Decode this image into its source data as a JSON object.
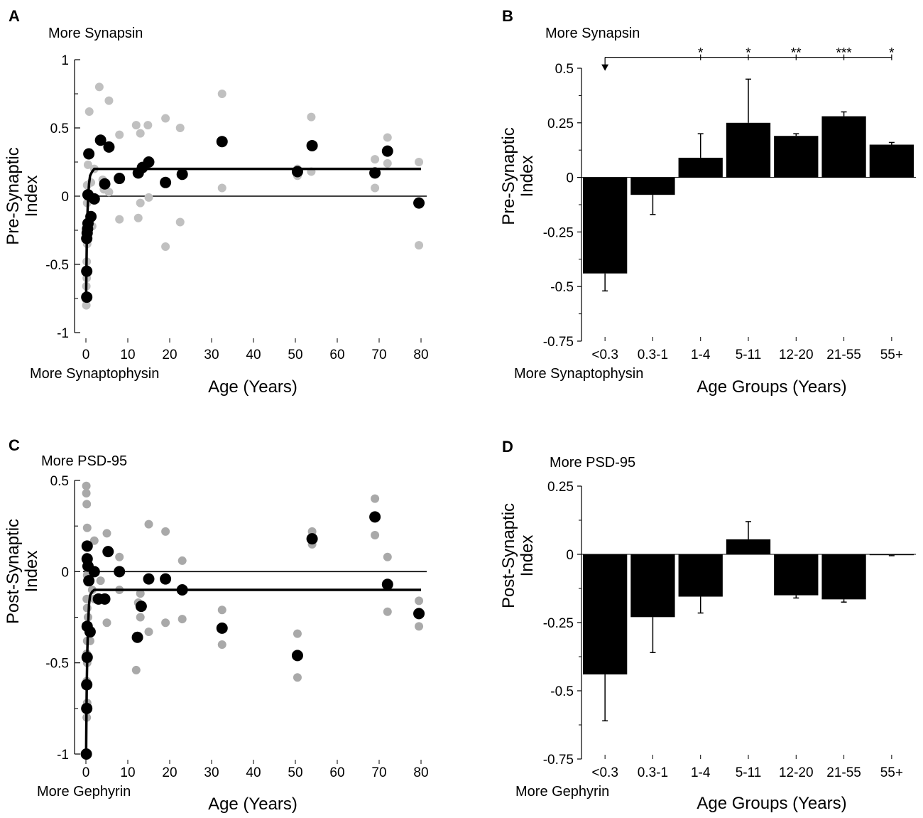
{
  "figure": {
    "panels": [
      {
        "letter": "A"
      },
      {
        "letter": "B"
      },
      {
        "letter": "C"
      },
      {
        "letter": "D"
      }
    ]
  },
  "chart_data": [
    {
      "type": "scatter",
      "panel": "A",
      "top_annotation": "More Synapsin",
      "bottom_annotation": "More Synaptophysin",
      "xlabel": "Age (Years)",
      "ylabel_line1": "Pre-Synaptic",
      "ylabel_line2": "Index",
      "xlim": [
        -2,
        80
      ],
      "ylim": [
        -1,
        1
      ],
      "xticks": [
        0,
        10,
        20,
        30,
        40,
        50,
        60,
        70,
        80
      ],
      "yticks": [
        {
          "v": -1,
          "label": "-1"
        },
        {
          "v": -0.5,
          "label": "-0.5"
        },
        {
          "v": 0,
          "label": "0"
        },
        {
          "v": 0.5,
          "label": "0.5"
        },
        {
          "v": 1,
          "label": "1"
        }
      ],
      "zero_line": 0,
      "fit_plateau": 0.2,
      "fit_curve": [
        [
          0.05,
          -0.74
        ],
        [
          0.1,
          -0.6
        ],
        [
          0.2,
          -0.35
        ],
        [
          0.35,
          -0.15
        ],
        [
          0.5,
          -0.02
        ],
        [
          0.75,
          0.09
        ],
        [
          1,
          0.15
        ],
        [
          1.5,
          0.18
        ],
        [
          2,
          0.2
        ]
      ],
      "series": [
        {
          "name": "individual",
          "color": "#c0c0c0",
          "points": [
            [
              0.1,
              -0.8
            ],
            [
              0.1,
              -0.76
            ],
            [
              0.1,
              -0.66
            ],
            [
              0.2,
              -0.6
            ],
            [
              0.2,
              -0.48
            ],
            [
              0.3,
              -0.35
            ],
            [
              0.2,
              -0.2
            ],
            [
              0.3,
              -0.05
            ],
            [
              0.3,
              0.08
            ],
            [
              0.5,
              0.23
            ],
            [
              0.8,
              0.62
            ],
            [
              1.2,
              0.1
            ],
            [
              1.5,
              -0.22
            ],
            [
              2,
              0.2
            ],
            [
              3.2,
              0.8
            ],
            [
              4,
              0.12
            ],
            [
              4.3,
              0.05
            ],
            [
              5.5,
              0.7
            ],
            [
              5.5,
              0.03
            ],
            [
              8,
              0.45
            ],
            [
              8,
              -0.17
            ],
            [
              12,
              0.52
            ],
            [
              12.5,
              -0.16
            ],
            [
              13,
              0.46
            ],
            [
              13,
              -0.05
            ],
            [
              14.8,
              0.52
            ],
            [
              15,
              -0.01
            ],
            [
              19,
              0.57
            ],
            [
              19,
              -0.37
            ],
            [
              22.5,
              0.5
            ],
            [
              22.5,
              -0.19
            ],
            [
              32.5,
              0.75
            ],
            [
              32.5,
              0.06
            ],
            [
              50.5,
              0.2
            ],
            [
              50.5,
              0.15
            ],
            [
              53.8,
              0.58
            ],
            [
              53.8,
              0.18
            ],
            [
              69,
              0.27
            ],
            [
              69,
              0.06
            ],
            [
              72,
              0.43
            ],
            [
              72,
              0.24
            ],
            [
              79.5,
              0.25
            ],
            [
              79.5,
              -0.36
            ]
          ]
        },
        {
          "name": "mean",
          "color": "#000000",
          "points": [
            [
              0.2,
              -0.74
            ],
            [
              0.2,
              -0.55
            ],
            [
              0.2,
              -0.31
            ],
            [
              0.3,
              -0.27
            ],
            [
              0.4,
              -0.24
            ],
            [
              0.5,
              -0.2
            ],
            [
              0.5,
              0.01
            ],
            [
              0.7,
              0.31
            ],
            [
              1.2,
              -0.15
            ],
            [
              2,
              -0.02
            ],
            [
              3.5,
              0.41
            ],
            [
              4.5,
              0.09
            ],
            [
              5.5,
              0.36
            ],
            [
              8,
              0.13
            ],
            [
              12.5,
              0.17
            ],
            [
              13.5,
              0.21
            ],
            [
              15,
              0.25
            ],
            [
              19,
              0.1
            ],
            [
              23,
              0.16
            ],
            [
              32.5,
              0.4
            ],
            [
              50.5,
              0.18
            ],
            [
              54,
              0.37
            ],
            [
              69,
              0.17
            ],
            [
              72,
              0.33
            ],
            [
              79.5,
              -0.05
            ]
          ]
        }
      ]
    },
    {
      "type": "bar",
      "panel": "B",
      "top_annotation": "More Synapsin",
      "bottom_annotation": "More Synaptophysin",
      "xlabel": "Age Groups (Years)",
      "ylabel_line1": "Pre-Synaptic",
      "ylabel_line2": "Index",
      "ylim": [
        -0.75,
        0.5
      ],
      "yticks": [
        {
          "v": -0.75,
          "label": "-0.75"
        },
        {
          "v": -0.5,
          "label": "-0.5"
        },
        {
          "v": -0.25,
          "label": "-0.25"
        },
        {
          "v": 0,
          "label": "0"
        },
        {
          "v": 0.25,
          "label": "0.25"
        },
        {
          "v": 0.5,
          "label": "0.5"
        }
      ],
      "categories": [
        "<0.3",
        "0.3-1",
        "1-4",
        "5-11",
        "12-20",
        "21-55",
        "55+"
      ],
      "values": [
        -0.44,
        -0.08,
        0.09,
        0.25,
        0.19,
        0.28,
        0.15
      ],
      "errors": [
        0.08,
        0.09,
        0.11,
        0.2,
        0.01,
        0.02,
        0.01
      ],
      "significance": [
        "",
        "",
        "*",
        "*",
        "**",
        "***",
        "*"
      ],
      "bracket_y": 0.55
    },
    {
      "type": "scatter",
      "panel": "C",
      "top_annotation": "More PSD-95",
      "bottom_annotation": "More Gephyrin",
      "xlabel": "Age (Years)",
      "ylabel_line1": "Post-Synaptic",
      "ylabel_line2": "Index",
      "xlim": [
        -2,
        80
      ],
      "ylim": [
        -1,
        0.5
      ],
      "xticks": [
        0,
        10,
        20,
        30,
        40,
        50,
        60,
        70,
        80
      ],
      "yticks": [
        {
          "v": -1,
          "label": "-1"
        },
        {
          "v": -0.5,
          "label": "-0.5"
        },
        {
          "v": 0,
          "label": "0"
        },
        {
          "v": 0.5,
          "label": "0.5"
        }
      ],
      "zero_line": 0,
      "fit_plateau": -0.1,
      "fit_curve": [
        [
          0.05,
          -1.0
        ],
        [
          0.1,
          -0.85
        ],
        [
          0.2,
          -0.62
        ],
        [
          0.35,
          -0.42
        ],
        [
          0.5,
          -0.3
        ],
        [
          0.75,
          -0.18
        ],
        [
          1,
          -0.13
        ],
        [
          1.5,
          -0.11
        ],
        [
          2,
          -0.1
        ]
      ],
      "series": [
        {
          "name": "individual",
          "color": "#a9a9a9",
          "points": [
            [
              0.1,
              0.47
            ],
            [
              0.1,
              0.43
            ],
            [
              0.2,
              0.37
            ],
            [
              0.3,
              0.24
            ],
            [
              0.2,
              0.08
            ],
            [
              0.3,
              -0.02
            ],
            [
              0.2,
              -0.15
            ],
            [
              0.3,
              -0.2
            ],
            [
              0.2,
              -0.3
            ],
            [
              0.3,
              -0.38
            ],
            [
              0.2,
              -0.45
            ],
            [
              0.3,
              -0.5
            ],
            [
              0.2,
              -0.6
            ],
            [
              0.3,
              -0.72
            ],
            [
              0.2,
              -0.8
            ],
            [
              0.5,
              -0.25
            ],
            [
              1,
              -0.38
            ],
            [
              1.5,
              -0.1
            ],
            [
              2,
              0.17
            ],
            [
              2,
              -0.15
            ],
            [
              3.5,
              -0.05
            ],
            [
              5,
              0.21
            ],
            [
              5,
              -0.28
            ],
            [
              8,
              0.08
            ],
            [
              8,
              -0.1
            ],
            [
              12,
              -0.54
            ],
            [
              12.5,
              -0.17
            ],
            [
              13,
              -0.25
            ],
            [
              13,
              -0.12
            ],
            [
              15,
              0.26
            ],
            [
              15,
              -0.33
            ],
            [
              19,
              0.22
            ],
            [
              19,
              -0.28
            ],
            [
              23,
              0.06
            ],
            [
              23,
              -0.26
            ],
            [
              32.5,
              -0.21
            ],
            [
              32.5,
              -0.4
            ],
            [
              50.5,
              -0.34
            ],
            [
              50.5,
              -0.58
            ],
            [
              54,
              0.22
            ],
            [
              54,
              0.15
            ],
            [
              69,
              0.4
            ],
            [
              69,
              0.2
            ],
            [
              72,
              0.08
            ],
            [
              72,
              -0.22
            ],
            [
              79.5,
              -0.16
            ],
            [
              79.5,
              -0.3
            ]
          ]
        },
        {
          "name": "mean",
          "color": "#000000",
          "points": [
            [
              0.1,
              -1.0
            ],
            [
              0.2,
              -0.75
            ],
            [
              0.2,
              -0.62
            ],
            [
              0.3,
              -0.47
            ],
            [
              0.3,
              -0.3
            ],
            [
              0.3,
              0.14
            ],
            [
              0.3,
              0.07
            ],
            [
              0.5,
              0.03
            ],
            [
              0.7,
              -0.05
            ],
            [
              1,
              -0.33
            ],
            [
              2,
              0
            ],
            [
              3,
              -0.15
            ],
            [
              4.5,
              -0.15
            ],
            [
              5.3,
              0.11
            ],
            [
              8,
              0
            ],
            [
              12.3,
              -0.36
            ],
            [
              13.2,
              -0.19
            ],
            [
              15,
              -0.04
            ],
            [
              19,
              -0.04
            ],
            [
              23,
              -0.1
            ],
            [
              32.5,
              -0.31
            ],
            [
              50.5,
              -0.46
            ],
            [
              54,
              0.18
            ],
            [
              69,
              0.3
            ],
            [
              72,
              -0.07
            ],
            [
              79.5,
              -0.23
            ]
          ]
        }
      ]
    },
    {
      "type": "bar",
      "panel": "D",
      "top_annotation": "More PSD-95",
      "bottom_annotation": "More Gephyrin",
      "xlabel": "Age Groups (Years)",
      "ylabel_line1": "Post-Synaptic",
      "ylabel_line2": "Index",
      "ylim": [
        -0.75,
        0.25
      ],
      "yticks": [
        {
          "v": -0.75,
          "label": "-0.75"
        },
        {
          "v": -0.5,
          "label": "-0.5"
        },
        {
          "v": -0.25,
          "label": "-0.25"
        },
        {
          "v": 0,
          "label": "0"
        },
        {
          "v": 0.25,
          "label": "0.25"
        }
      ],
      "categories": [
        "<0.3",
        "0.3-1",
        "1-4",
        "5-11",
        "12-20",
        "21-55",
        "55+"
      ],
      "values": [
        -0.44,
        -0.23,
        -0.155,
        0.055,
        -0.15,
        -0.165,
        -0.003
      ],
      "errors": [
        0.17,
        0.13,
        0.06,
        0.065,
        0.01,
        0.01,
        0.002
      ],
      "significance": [],
      "bracket_y": null
    }
  ]
}
